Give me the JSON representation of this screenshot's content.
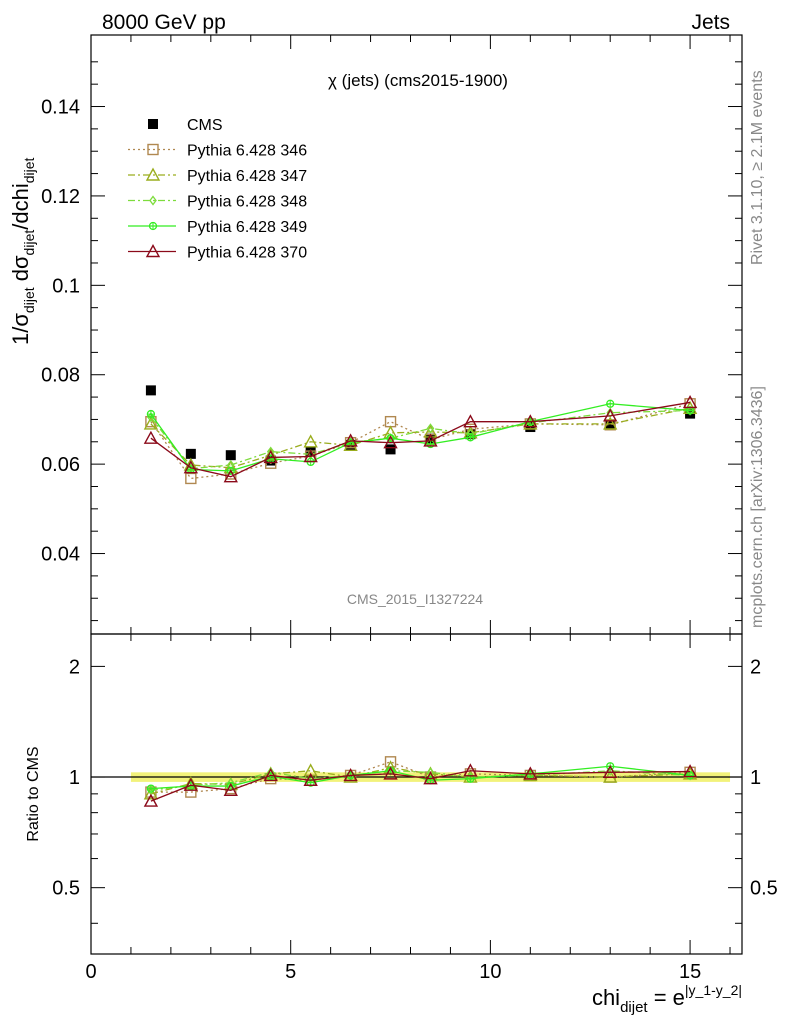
{
  "header": {
    "left": "8000 GeV pp",
    "right": "Jets"
  },
  "side": {
    "rivet": "Rivet 3.1.10, ≥ 2.1M events",
    "mcplots": "mcplots.cern.ch [arXiv:1306.3436]"
  },
  "colors": {
    "CMS": "#000000",
    "Pythia 6.428 346": "#b08850",
    "Pythia 6.428 347": "#9aad1e",
    "Pythia 6.428 348": "#7ddc3c",
    "Pythia 6.428 349": "#33ee22",
    "Pythia 6.428 370": "#8b0a1a",
    "band": "#f2f27a"
  },
  "chart_data": [
    {
      "type": "line",
      "title": "χ (jets) (cms2015-1900)",
      "watermark": "CMS_2015_I1327224",
      "ylabel": "1/σ_dijet dσ_dijet/dchi_dijet",
      "xlim": [
        0,
        16.3
      ],
      "ylim": [
        0.022,
        0.156
      ],
      "yticks": [
        0.04,
        0.06,
        0.08,
        0.1,
        0.12,
        0.14
      ],
      "ytick_labels": [
        "0.04",
        "0.06",
        "0.08",
        "0.1",
        "0.12",
        "0.14"
      ],
      "legend_position": "top-left",
      "x": [
        1.5,
        2.5,
        3.5,
        4.5,
        5.5,
        6.5,
        7.5,
        8.5,
        9.5,
        11,
        13,
        15
      ],
      "series": [
        {
          "name": "CMS",
          "values": [
            0.0765,
            0.0623,
            0.062,
            0.0608,
            0.0628,
            0.0643,
            0.0633,
            0.0657,
            0.0667,
            0.0683,
            0.0688,
            0.0713
          ]
        },
        {
          "name": "Pythia 6.428 346",
          "values": [
            0.0695,
            0.0568,
            0.0578,
            0.0602,
            0.0618,
            0.0648,
            0.0695,
            0.0655,
            0.0678,
            0.069,
            0.0688,
            0.0735
          ]
        },
        {
          "name": "Pythia 6.428 347",
          "values": [
            0.069,
            0.0598,
            0.0592,
            0.062,
            0.065,
            0.0642,
            0.067,
            0.0672,
            0.067,
            0.069,
            0.069,
            0.0725
          ]
        },
        {
          "name": "Pythia 6.428 348",
          "values": [
            0.0705,
            0.059,
            0.0598,
            0.0628,
            0.0622,
            0.0648,
            0.0658,
            0.068,
            0.0668,
            0.0692,
            0.0715,
            0.072
          ]
        },
        {
          "name": "Pythia 6.428 349",
          "values": [
            0.0712,
            0.0588,
            0.0585,
            0.0612,
            0.0605,
            0.0648,
            0.0658,
            0.0645,
            0.066,
            0.0695,
            0.0735,
            0.072
          ]
        },
        {
          "name": "Pythia 6.428 370",
          "values": [
            0.0658,
            0.0592,
            0.0572,
            0.0615,
            0.0617,
            0.0652,
            0.0648,
            0.0652,
            0.0695,
            0.0695,
            0.0708,
            0.0738
          ]
        }
      ]
    },
    {
      "type": "line",
      "xlabel": "chi_dijet = e^|y_1-y_2|",
      "ylabel": "Ratio to CMS",
      "log_y": true,
      "xlim": [
        0,
        16.3
      ],
      "ylim": [
        0.33,
        2.45
      ],
      "yticks": [
        0.5,
        1,
        2
      ],
      "ytick_labels": [
        "0.5",
        "1",
        "2"
      ],
      "xticks": [
        0,
        5,
        10,
        15
      ],
      "xtick_labels": [
        "0",
        "5",
        "10",
        "15"
      ],
      "reference_band": [
        0.97,
        1.03
      ],
      "x": [
        1.5,
        2.5,
        3.5,
        4.5,
        5.5,
        6.5,
        7.5,
        8.5,
        9.5,
        11,
        13,
        15
      ],
      "series": [
        {
          "name": "Pythia 6.428 346",
          "values": [
            0.91,
            0.91,
            0.93,
            0.99,
            0.98,
            1.01,
            1.1,
            1.0,
            1.02,
            1.01,
            1.0,
            1.03
          ]
        },
        {
          "name": "Pythia 6.428 347",
          "values": [
            0.9,
            0.96,
            0.955,
            1.02,
            1.04,
            1.0,
            1.06,
            1.02,
            1.0,
            1.01,
            1.0,
            1.02
          ]
        },
        {
          "name": "Pythia 6.428 348",
          "values": [
            0.92,
            0.95,
            0.965,
            1.03,
            0.99,
            1.01,
            1.04,
            1.03,
            1.0,
            1.01,
            1.04,
            1.01
          ]
        },
        {
          "name": "Pythia 6.428 349",
          "values": [
            0.93,
            0.945,
            0.945,
            1.005,
            0.965,
            1.01,
            1.04,
            0.98,
            0.99,
            1.02,
            1.07,
            1.01
          ]
        },
        {
          "name": "Pythia 6.428 370",
          "values": [
            0.86,
            0.95,
            0.92,
            1.01,
            0.98,
            1.01,
            1.02,
            0.99,
            1.04,
            1.02,
            1.03,
            1.035
          ]
        }
      ]
    }
  ]
}
